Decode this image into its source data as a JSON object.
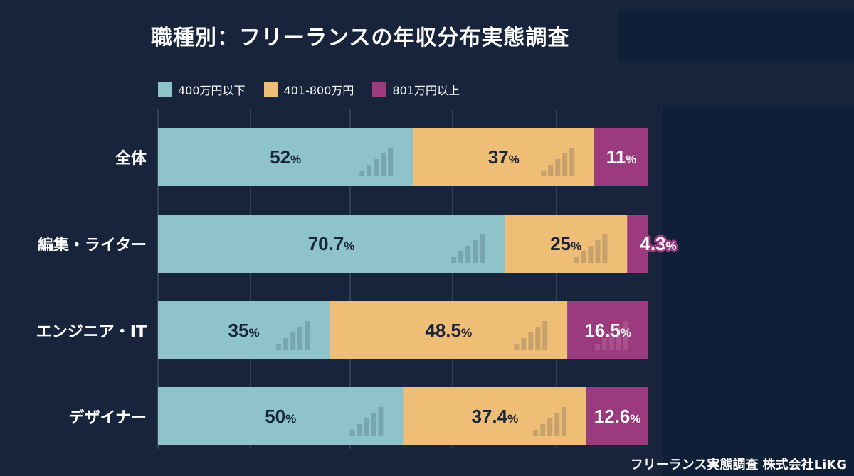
{
  "chart_data": {
    "type": "bar",
    "orientation": "horizontal",
    "stacked": true,
    "title": "職種別：フリーランスの年収分布実態調査",
    "categories": [
      "全体",
      "編集・ライター",
      "エンジニア・IT",
      "デザイナー"
    ],
    "series": [
      {
        "name": "400万円以下",
        "color": "#8ec4c9",
        "values": [
          52,
          70.7,
          35,
          50
        ],
        "labels": [
          "52",
          "70.7",
          "35",
          "50"
        ]
      },
      {
        "name": "401-800万円",
        "color": "#eebd76",
        "values": [
          37,
          25,
          48.5,
          37.4
        ],
        "labels": [
          "37",
          "25",
          "48.5",
          "37.4"
        ]
      },
      {
        "name": "801万円以上",
        "color": "#9b3a7e",
        "values": [
          11,
          4.3,
          16.5,
          12.6
        ],
        "labels": [
          "11",
          "4.3",
          "16.5",
          "12.6"
        ]
      }
    ],
    "value_suffix": "%",
    "xlim": [
      0,
      100
    ],
    "legend_position": "top-left",
    "grid": true
  },
  "source": "フリーランス実態調査 株式会社LiKG",
  "colors": {
    "background": "#17243b",
    "dark_text": "#17243b",
    "light_text": "#ffffff"
  }
}
